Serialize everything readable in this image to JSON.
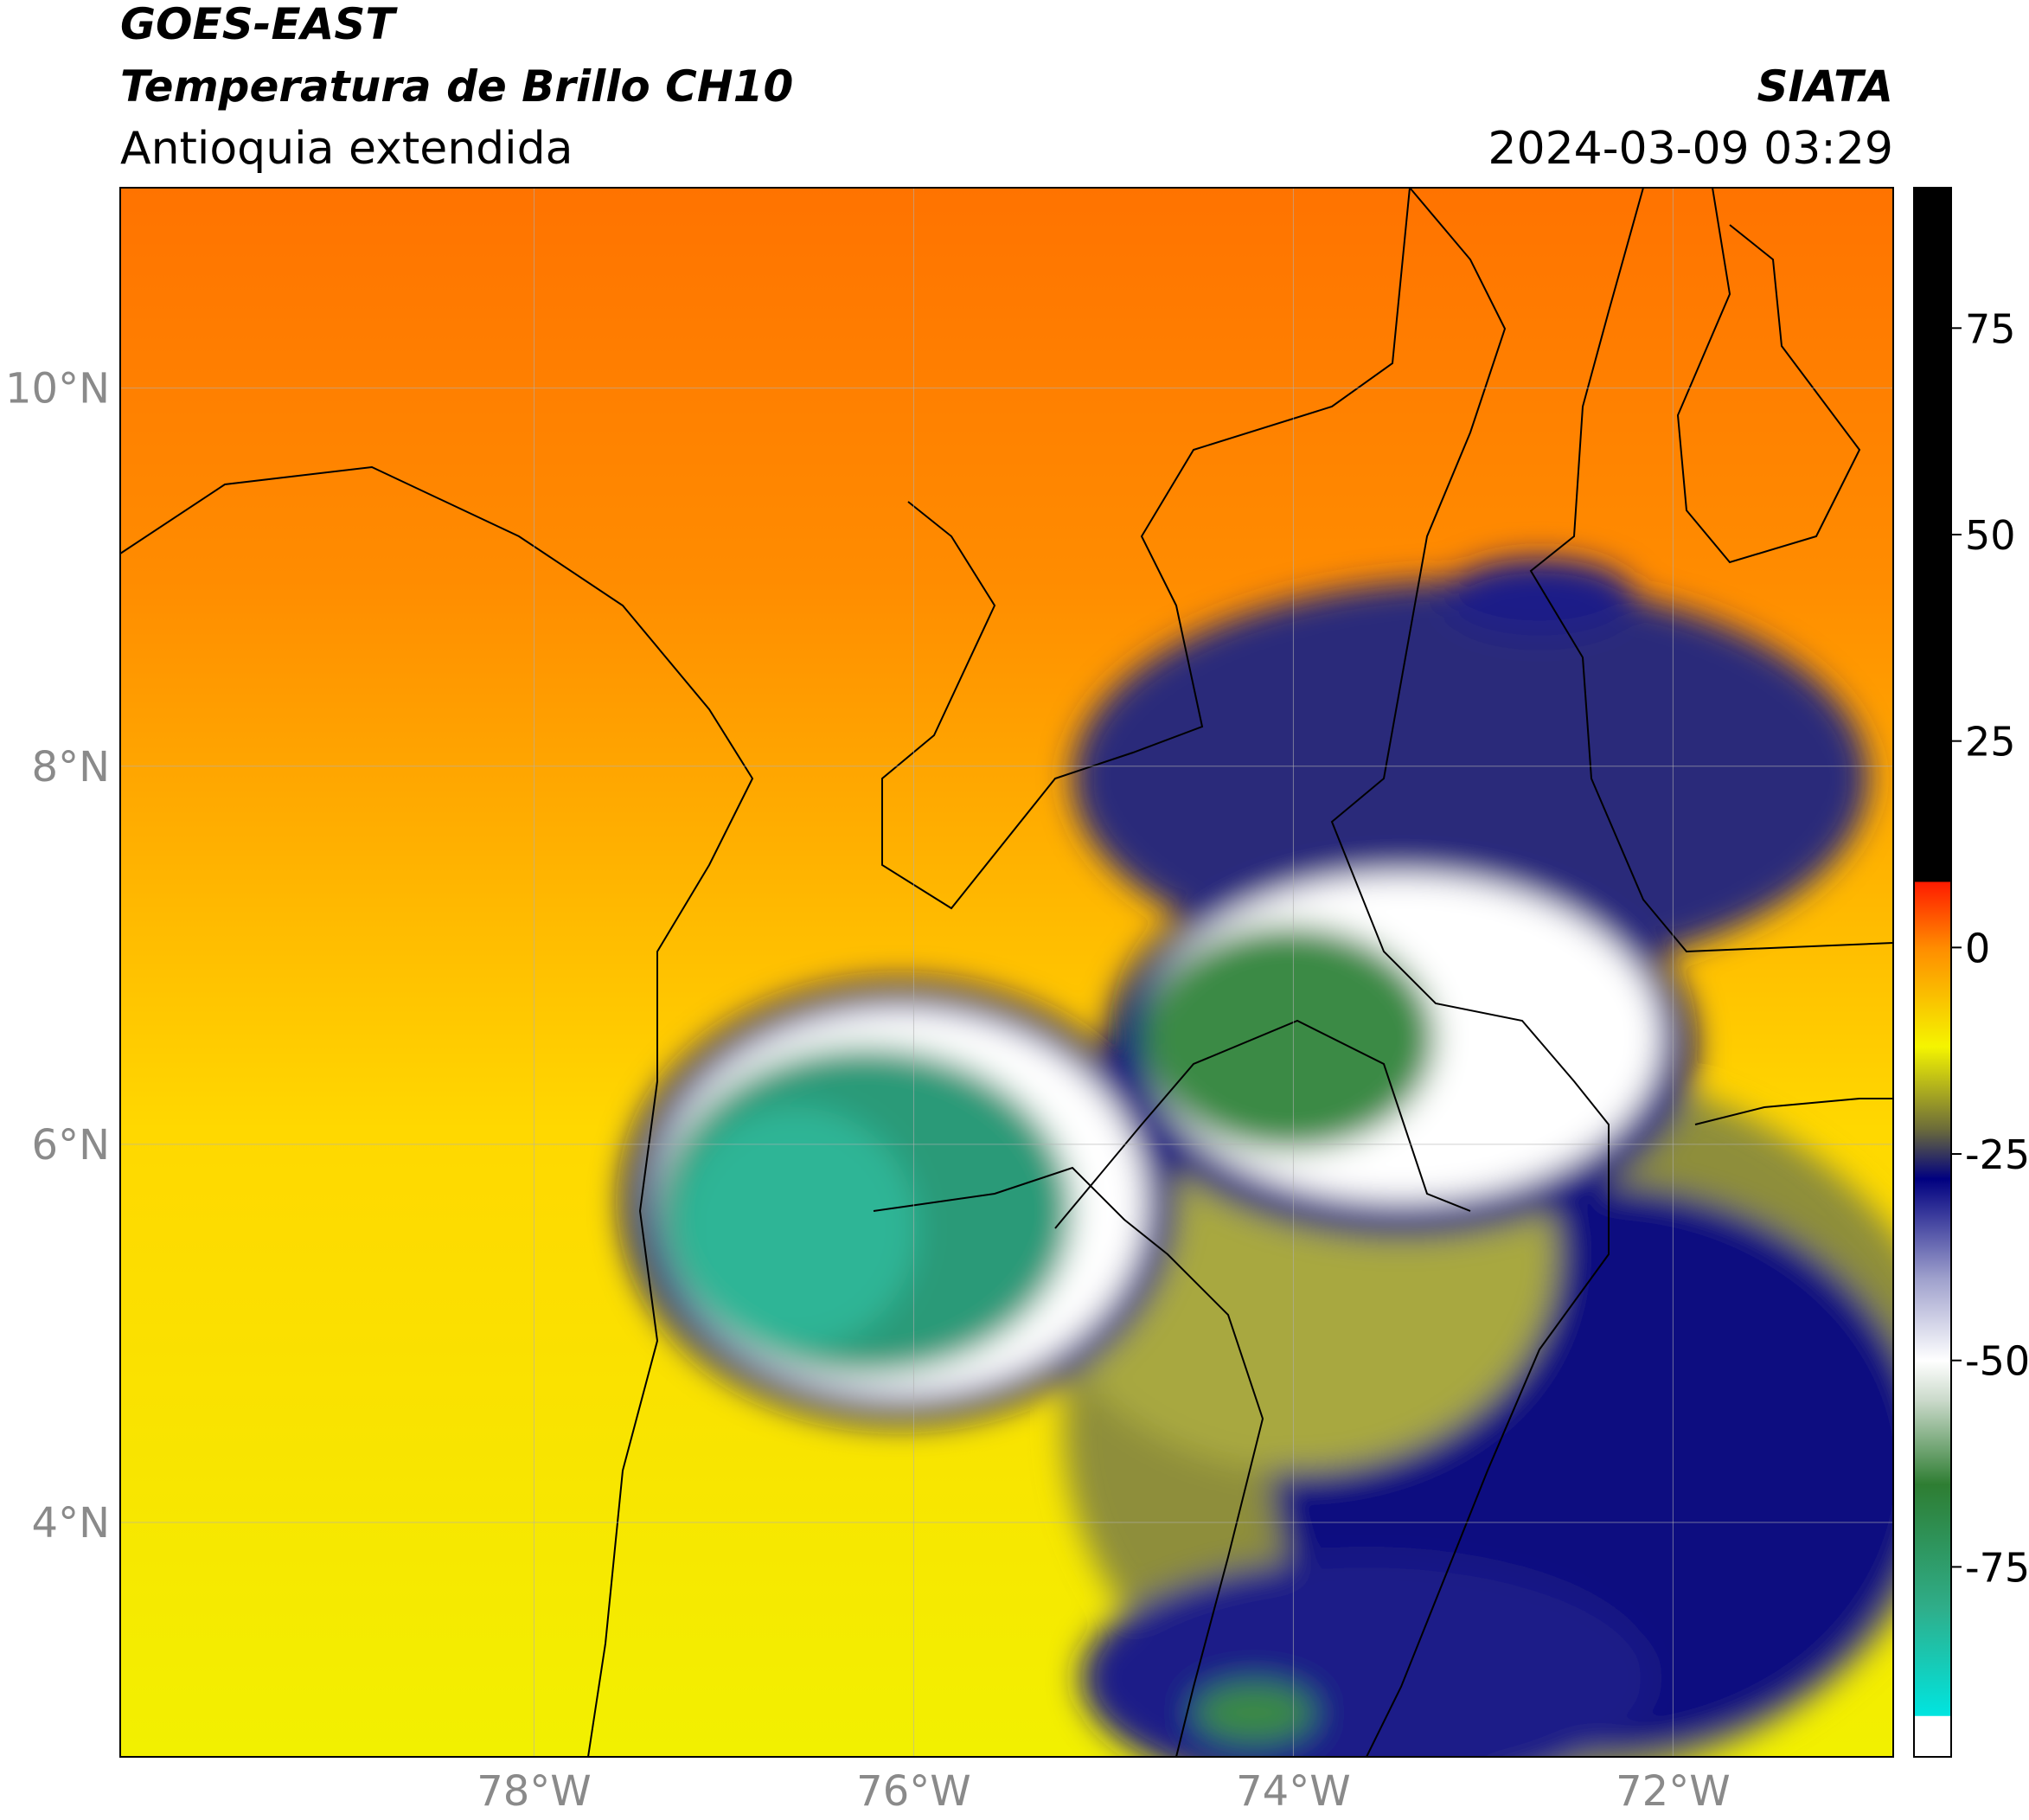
{
  "header": {
    "satellite": "GOES-EAST",
    "product": "Temperatura de Brillo CH10",
    "region": "Antioquia extendida",
    "source": "SIATA",
    "datetime": "2024-03-09 03:29"
  },
  "map": {
    "lonlim": [
      -80.18,
      -70.84
    ],
    "latlim": [
      2.76,
      11.06
    ],
    "xticks": [
      {
        "value": -78,
        "label": "78°W"
      },
      {
        "value": -76,
        "label": "76°W"
      },
      {
        "value": -74,
        "label": "74°W"
      },
      {
        "value": -72,
        "label": "72°W"
      }
    ],
    "yticks": [
      {
        "value": 10,
        "label": "10°N"
      },
      {
        "value": 8,
        "label": "8°N"
      },
      {
        "value": 6,
        "label": "6°N"
      },
      {
        "value": 4,
        "label": "4°N"
      }
    ],
    "grid": true
  },
  "colorbar": {
    "lim": [
      -98,
      92
    ],
    "ticks": [
      75,
      50,
      25,
      0,
      -25,
      -50,
      -75
    ],
    "stops": [
      {
        "value": -98,
        "color": "#ffffff"
      },
      {
        "value": -93,
        "color": "#ffffff"
      },
      {
        "value": -93,
        "color": "#00e5e0"
      },
      {
        "value": -80,
        "color": "#2fae8a"
      },
      {
        "value": -65,
        "color": "#2e7d32"
      },
      {
        "value": -55,
        "color": "#c8d8c8"
      },
      {
        "value": -50,
        "color": "#ffffff"
      },
      {
        "value": -40,
        "color": "#9ea0cc"
      },
      {
        "value": -28,
        "color": "#000080"
      },
      {
        "value": -22,
        "color": "#6b6b3a"
      },
      {
        "value": -12,
        "color": "#f5f500"
      },
      {
        "value": 0,
        "color": "#ff8c00"
      },
      {
        "value": 8,
        "color": "#ff1a00"
      },
      {
        "value": 8,
        "color": "#000000"
      },
      {
        "value": 92,
        "color": "#000000"
      }
    ]
  }
}
